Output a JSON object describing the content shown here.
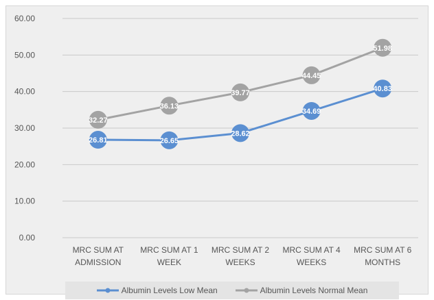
{
  "chart_data": {
    "type": "line",
    "categories": [
      [
        "MRC SUM AT",
        "ADMISSION"
      ],
      [
        "MRC SUM AT 1",
        "WEEK"
      ],
      [
        "MRC SUM AT 2",
        "WEEKS"
      ],
      [
        "MRC SUM AT 4",
        "WEEKS"
      ],
      [
        "MRC SUM AT 6",
        "MONTHS"
      ]
    ],
    "series": [
      {
        "name": "Albumin Levels Low Mean",
        "values": [
          26.81,
          26.65,
          28.62,
          34.69,
          40.83
        ],
        "value_labels": [
          "26.81",
          "26.65",
          "28.62",
          "34.69",
          "40.83"
        ],
        "color": "#5b8fd1"
      },
      {
        "name": "Albumin Levels Normal Mean",
        "values": [
          32.27,
          36.13,
          39.77,
          44.45,
          51.98
        ],
        "value_labels": [
          "32.27",
          "36.13",
          "39.77",
          "44.45",
          "51.98"
        ],
        "color": "#a3a3a3"
      }
    ],
    "yticks": [
      "0.00",
      "10.00",
      "20.00",
      "30.00",
      "40.00",
      "50.00",
      "60.00"
    ],
    "ylim": [
      0,
      60
    ],
    "grid": true,
    "legend_position": "bottom",
    "title": "",
    "xlabel": "",
    "ylabel": ""
  }
}
